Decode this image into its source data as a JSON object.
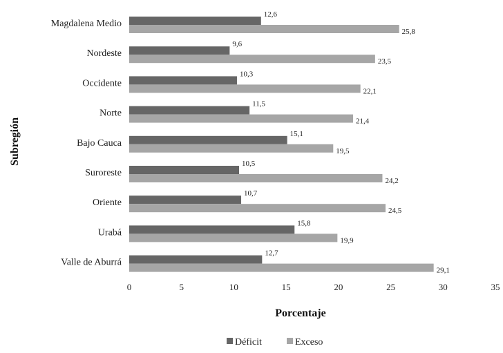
{
  "chart_data": {
    "type": "bar",
    "orientation": "horizontal",
    "categories": [
      "Magdalena Medio",
      "Nordeste",
      "Occidente",
      "Norte",
      "Bajo Cauca",
      "Suroreste",
      "Oriente",
      "Urabá",
      "Valle de Aburrá"
    ],
    "series": [
      {
        "name": "Déficit",
        "color": "#666666",
        "values": [
          12.6,
          9.6,
          10.3,
          11.5,
          15.1,
          10.5,
          10.7,
          15.8,
          12.7
        ],
        "labels": [
          "12,6",
          "9,6",
          "10,3",
          "11,5",
          "15,1",
          "10,5",
          "10,7",
          "15,8",
          "12,7"
        ]
      },
      {
        "name": "Exceso",
        "color": "#a6a6a6",
        "values": [
          25.8,
          23.5,
          22.1,
          21.4,
          19.5,
          24.2,
          24.5,
          19.9,
          29.1
        ],
        "labels": [
          "25,8",
          "23,5",
          "22,1",
          "21,4",
          "19,5",
          "24,2",
          "24,5",
          "19,9",
          "29,1"
        ]
      }
    ],
    "xlabel": "Porcentaje",
    "ylabel": "Subregión",
    "xlim": [
      0,
      35
    ],
    "xticks": [
      0,
      5,
      10,
      15,
      20,
      25,
      30,
      35
    ],
    "grid": false,
    "legend_position": "bottom"
  }
}
